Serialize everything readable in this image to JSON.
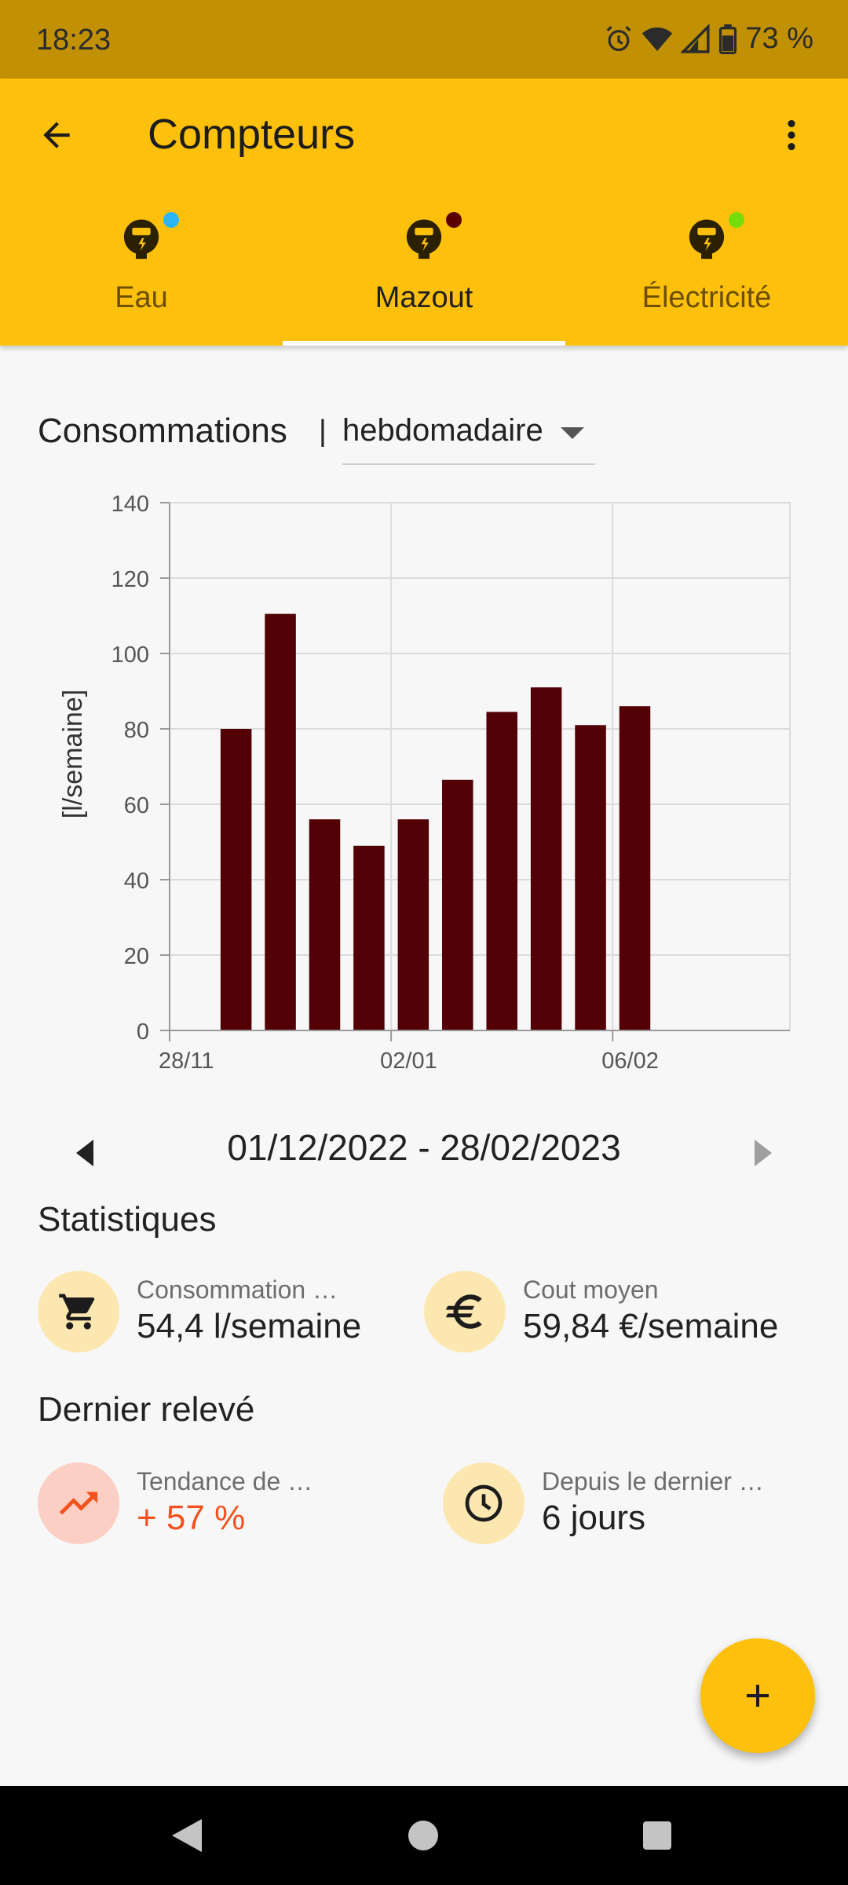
{
  "status_bar": {
    "time": "18:23",
    "battery": "73 %"
  },
  "app_bar": {
    "title": "Compteurs"
  },
  "tabs": [
    {
      "label": "Eau",
      "dot_color": "#29b6f6",
      "active": false
    },
    {
      "label": "Mazout",
      "dot_color": "#5a0000",
      "active": true
    },
    {
      "label": "Électricité",
      "dot_color": "#76dd0d",
      "active": false
    }
  ],
  "consumption": {
    "title": "Consommations",
    "separator": "|",
    "period": "hebdomadaire"
  },
  "chart_data": {
    "type": "bar",
    "title": "",
    "xlabel": "",
    "ylabel": "[l/semaine]",
    "ylim": [
      0,
      140
    ],
    "y_ticks": [
      0,
      20,
      40,
      60,
      80,
      100,
      120,
      140
    ],
    "x_tick_labels": [
      "28/11",
      "02/01",
      "06/02"
    ],
    "xlim_weeks": [
      0,
      14
    ],
    "x_tick_positions_weeks": [
      0,
      5,
      10
    ],
    "bar_positions_weeks": [
      1.5,
      2.5,
      3.5,
      4.5,
      5.5,
      6.5,
      7.5,
      8.5,
      9.5,
      10.5
    ],
    "values": [
      80,
      110.5,
      56,
      49,
      56,
      66.5,
      84.5,
      91,
      81,
      86
    ],
    "bar_color": "#520006",
    "grid": true
  },
  "range": {
    "text": "01/12/2022 - 28/02/2023"
  },
  "stats": {
    "title": "Statistiques",
    "consumption_label": "Consommation …",
    "consumption_value": "54,4 l/semaine",
    "cost_label": "Cout moyen",
    "cost_value": "59,84  €/semaine"
  },
  "last_reading": {
    "title": "Dernier relevé",
    "trend_label": "Tendance de …",
    "trend_value": "+ 57 %",
    "trend_color": "#f4511e",
    "since_label": "Depuis le dernier …",
    "since_value": "6 jours"
  }
}
